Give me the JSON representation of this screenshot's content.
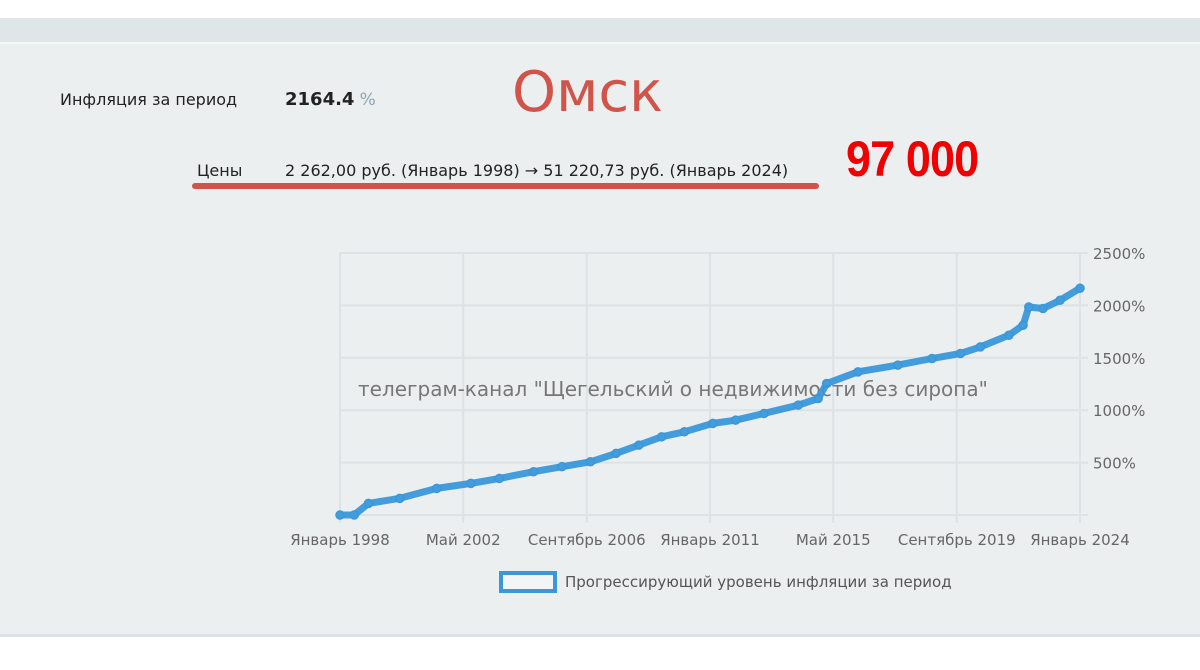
{
  "header": {
    "inflation_label": "Инфляция за период",
    "inflation_value": "2164.4",
    "inflation_unit": "%",
    "city": "Омск",
    "prices_label": "Цены",
    "prices_value": "2 262,00 руб. (Январь 1998) → 51 220,73 руб. (Январь 2024)",
    "annotation_number": "97 000"
  },
  "colors": {
    "line": "#3a97d9",
    "city": "#d1544a",
    "annotation": "#f00000"
  },
  "chart_data": {
    "type": "line",
    "title": "",
    "xlabel": "",
    "ylabel": "",
    "xlim": [
      1998.0,
      2024.0
    ],
    "ylim": [
      0,
      2500
    ],
    "x_tick_labels": [
      {
        "x": 1998.0,
        "label": "Январь 1998"
      },
      {
        "x": 2002.33,
        "label": "Май 2002"
      },
      {
        "x": 2006.67,
        "label": "Сентябрь 2006"
      },
      {
        "x": 2011.0,
        "label": "Январь 2011"
      },
      {
        "x": 2015.33,
        "label": "Май 2015"
      },
      {
        "x": 2019.67,
        "label": "Сентябрь 2019"
      },
      {
        "x": 2024.0,
        "label": "Январь 2024"
      }
    ],
    "y_ticks": [
      500,
      1000,
      1500,
      2000,
      2500
    ],
    "y_tick_labels": [
      "500%",
      "1000%",
      "1500%",
      "2000%",
      "2500%"
    ],
    "grid": true,
    "legend": {
      "position": "bottom",
      "entries": [
        "Прогрессирующий уровень инфляции за период"
      ]
    },
    "watermark": "телеграм-канал \"Щегельский о недвижимости без сиропа\"",
    "series": [
      {
        "name": "Прогрессирующий уровень инфляции за период",
        "x": [
          1998.0,
          1998.5,
          1999.0,
          2000.1,
          2001.4,
          2002.6,
          2003.6,
          2004.8,
          2005.8,
          2006.8,
          2007.7,
          2008.5,
          2009.3,
          2010.1,
          2011.1,
          2011.9,
          2012.9,
          2014.1,
          2014.8,
          2015.1,
          2016.2,
          2017.6,
          2018.8,
          2019.8,
          2020.5,
          2021.5,
          2022.0,
          2022.2,
          2022.7,
          2023.3,
          2024.0
        ],
        "values": [
          0,
          0,
          111,
          159,
          254,
          302,
          349,
          413,
          461,
          508,
          588,
          667,
          746,
          794,
          874,
          905,
          969,
          1048,
          1112,
          1255,
          1366,
          1430,
          1493,
          1541,
          1604,
          1715,
          1811,
          1985,
          1970,
          2049,
          2164
        ]
      }
    ]
  }
}
